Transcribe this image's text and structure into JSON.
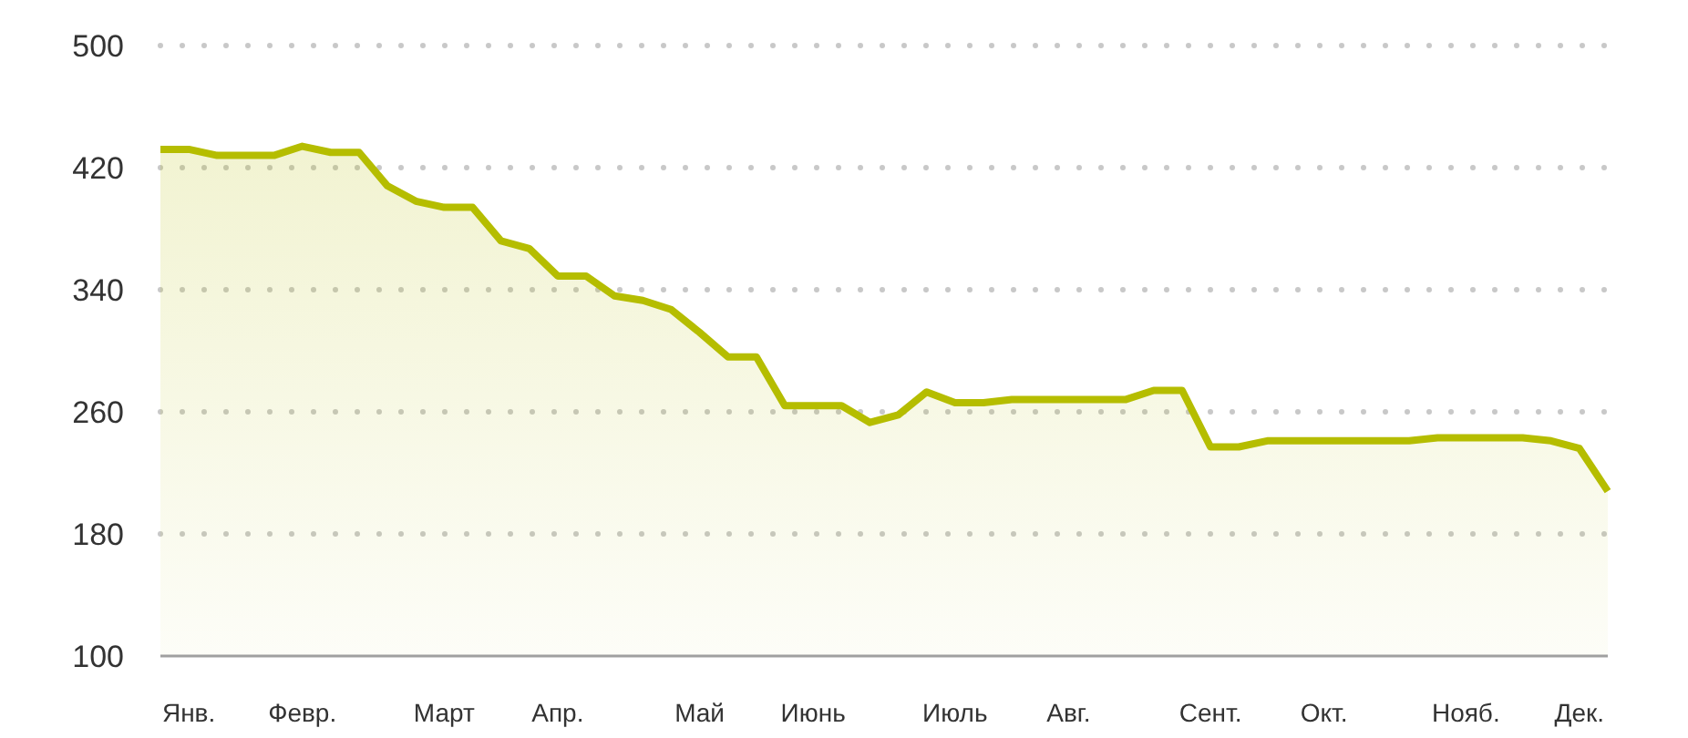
{
  "chart_data": {
    "type": "area",
    "categories": [
      null,
      "Янв.",
      null,
      null,
      null,
      "Февр.",
      null,
      null,
      null,
      null,
      "Март",
      null,
      null,
      null,
      "Апр.",
      null,
      null,
      null,
      null,
      "Май",
      null,
      null,
      null,
      "Июнь",
      null,
      null,
      null,
      null,
      "Июль",
      null,
      null,
      null,
      "Авг.",
      null,
      null,
      null,
      null,
      "Сент.",
      null,
      null,
      null,
      "Окт.",
      null,
      null,
      null,
      null,
      "Нояб.",
      null,
      null,
      null,
      "Дек.",
      null
    ],
    "series": [
      {
        "color": "#b5bd00",
        "values": [
          432,
          432,
          428,
          428,
          428,
          434,
          430,
          430,
          408,
          398,
          394,
          394,
          372,
          367,
          349,
          349,
          336,
          333,
          327,
          312,
          296,
          296,
          264,
          264,
          264,
          253,
          258,
          273,
          266,
          266,
          268,
          268,
          268,
          268,
          268,
          274,
          274,
          237,
          237,
          241,
          241,
          241,
          241,
          241,
          241,
          243,
          243,
          243,
          243,
          241,
          236,
          208
        ]
      }
    ],
    "ylim": [
      100,
      500
    ],
    "yticks": [
      100,
      180,
      260,
      340,
      420,
      500
    ],
    "grid": "y",
    "marker": "none",
    "line_style": "solid"
  }
}
